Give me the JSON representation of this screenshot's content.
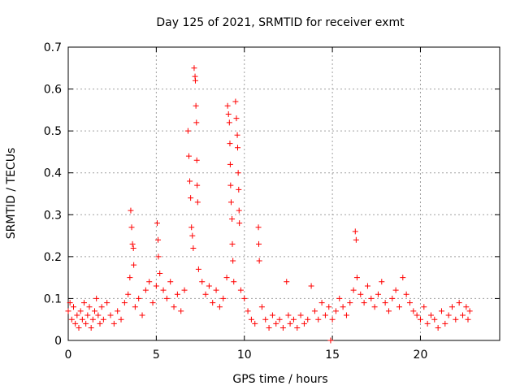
{
  "chart_data": {
    "type": "scatter",
    "title": "Day 125 of 2021, SRMTID for receiver exmt",
    "xlabel": "GPS time / hours",
    "ylabel": "SRMTID / TECUs",
    "xlim": [
      0,
      24.5
    ],
    "ylim": [
      0,
      0.7
    ],
    "xticks": [
      0,
      5,
      10,
      15,
      20
    ],
    "xtick_labels": [
      "0",
      "5",
      "10",
      "15",
      "20"
    ],
    "yticks": [
      0,
      0.1,
      0.2,
      0.3,
      0.4,
      0.5,
      0.6,
      0.7
    ],
    "ytick_labels": [
      "0",
      "0.1",
      "0.2",
      "0.3",
      "0.4",
      "0.5",
      "0.6",
      "0.7"
    ],
    "grid": true,
    "marker": "+",
    "color": "#ff0000",
    "series": [
      {
        "name": "SRMTID",
        "points": [
          [
            0.0,
            0.07
          ],
          [
            0.1,
            0.09
          ],
          [
            0.2,
            0.05
          ],
          [
            0.3,
            0.08
          ],
          [
            0.4,
            0.04
          ],
          [
            0.5,
            0.06
          ],
          [
            0.6,
            0.03
          ],
          [
            0.7,
            0.07
          ],
          [
            0.8,
            0.05
          ],
          [
            0.9,
            0.09
          ],
          [
            1.0,
            0.04
          ],
          [
            1.1,
            0.06
          ],
          [
            1.2,
            0.08
          ],
          [
            1.3,
            0.03
          ],
          [
            1.4,
            0.05
          ],
          [
            1.5,
            0.07
          ],
          [
            1.6,
            0.1
          ],
          [
            1.7,
            0.06
          ],
          [
            1.8,
            0.04
          ],
          [
            1.9,
            0.08
          ],
          [
            2.0,
            0.05
          ],
          [
            2.2,
            0.09
          ],
          [
            2.4,
            0.06
          ],
          [
            2.6,
            0.04
          ],
          [
            2.8,
            0.07
          ],
          [
            3.0,
            0.05
          ],
          [
            3.2,
            0.09
          ],
          [
            3.4,
            0.11
          ],
          [
            3.5,
            0.15
          ],
          [
            3.55,
            0.31
          ],
          [
            3.6,
            0.27
          ],
          [
            3.65,
            0.23
          ],
          [
            3.7,
            0.22
          ],
          [
            3.72,
            0.18
          ],
          [
            3.8,
            0.08
          ],
          [
            4.0,
            0.1
          ],
          [
            4.2,
            0.06
          ],
          [
            4.4,
            0.12
          ],
          [
            4.6,
            0.14
          ],
          [
            4.8,
            0.09
          ],
          [
            5.0,
            0.13
          ],
          [
            5.05,
            0.28
          ],
          [
            5.1,
            0.24
          ],
          [
            5.12,
            0.2
          ],
          [
            5.2,
            0.16
          ],
          [
            5.4,
            0.12
          ],
          [
            5.6,
            0.1
          ],
          [
            5.8,
            0.14
          ],
          [
            6.0,
            0.08
          ],
          [
            6.2,
            0.11
          ],
          [
            6.4,
            0.07
          ],
          [
            6.6,
            0.12
          ],
          [
            6.8,
            0.5
          ],
          [
            6.85,
            0.44
          ],
          [
            6.9,
            0.38
          ],
          [
            6.95,
            0.34
          ],
          [
            7.0,
            0.27
          ],
          [
            7.05,
            0.25
          ],
          [
            7.1,
            0.22
          ],
          [
            7.15,
            0.65
          ],
          [
            7.2,
            0.63
          ],
          [
            7.22,
            0.62
          ],
          [
            7.25,
            0.56
          ],
          [
            7.28,
            0.52
          ],
          [
            7.3,
            0.43
          ],
          [
            7.32,
            0.37
          ],
          [
            7.35,
            0.33
          ],
          [
            7.4,
            0.17
          ],
          [
            7.6,
            0.14
          ],
          [
            7.8,
            0.11
          ],
          [
            8.0,
            0.13
          ],
          [
            8.2,
            0.09
          ],
          [
            8.4,
            0.12
          ],
          [
            8.6,
            0.08
          ],
          [
            8.8,
            0.1
          ],
          [
            9.0,
            0.15
          ],
          [
            9.05,
            0.56
          ],
          [
            9.1,
            0.54
          ],
          [
            9.15,
            0.52
          ],
          [
            9.18,
            0.47
          ],
          [
            9.2,
            0.42
          ],
          [
            9.22,
            0.37
          ],
          [
            9.25,
            0.33
          ],
          [
            9.3,
            0.29
          ],
          [
            9.32,
            0.23
          ],
          [
            9.35,
            0.19
          ],
          [
            9.4,
            0.14
          ],
          [
            9.5,
            0.57
          ],
          [
            9.55,
            0.53
          ],
          [
            9.6,
            0.49
          ],
          [
            9.62,
            0.46
          ],
          [
            9.65,
            0.4
          ],
          [
            9.68,
            0.36
          ],
          [
            9.7,
            0.31
          ],
          [
            9.72,
            0.28
          ],
          [
            9.8,
            0.12
          ],
          [
            10.0,
            0.1
          ],
          [
            10.2,
            0.07
          ],
          [
            10.4,
            0.05
          ],
          [
            10.6,
            0.04
          ],
          [
            10.8,
            0.27
          ],
          [
            10.82,
            0.23
          ],
          [
            10.85,
            0.19
          ],
          [
            11.0,
            0.08
          ],
          [
            11.2,
            0.05
          ],
          [
            11.4,
            0.03
          ],
          [
            11.6,
            0.06
          ],
          [
            11.8,
            0.04
          ],
          [
            12.0,
            0.05
          ],
          [
            12.2,
            0.03
          ],
          [
            12.4,
            0.14
          ],
          [
            12.5,
            0.06
          ],
          [
            12.6,
            0.04
          ],
          [
            12.8,
            0.05
          ],
          [
            13.0,
            0.03
          ],
          [
            13.2,
            0.06
          ],
          [
            13.4,
            0.04
          ],
          [
            13.6,
            0.05
          ],
          [
            13.8,
            0.13
          ],
          [
            14.0,
            0.07
          ],
          [
            14.2,
            0.05
          ],
          [
            14.4,
            0.09
          ],
          [
            14.6,
            0.06
          ],
          [
            14.8,
            0.08
          ],
          [
            14.9,
            0.0
          ],
          [
            15.0,
            0.05
          ],
          [
            15.2,
            0.07
          ],
          [
            15.4,
            0.1
          ],
          [
            15.6,
            0.08
          ],
          [
            15.8,
            0.06
          ],
          [
            16.0,
            0.09
          ],
          [
            16.2,
            0.12
          ],
          [
            16.3,
            0.26
          ],
          [
            16.35,
            0.24
          ],
          [
            16.4,
            0.15
          ],
          [
            16.6,
            0.11
          ],
          [
            16.8,
            0.09
          ],
          [
            17.0,
            0.13
          ],
          [
            17.2,
            0.1
          ],
          [
            17.4,
            0.08
          ],
          [
            17.6,
            0.11
          ],
          [
            17.8,
            0.14
          ],
          [
            18.0,
            0.09
          ],
          [
            18.2,
            0.07
          ],
          [
            18.4,
            0.1
          ],
          [
            18.6,
            0.12
          ],
          [
            18.8,
            0.08
          ],
          [
            19.0,
            0.15
          ],
          [
            19.2,
            0.11
          ],
          [
            19.4,
            0.09
          ],
          [
            19.6,
            0.07
          ],
          [
            19.8,
            0.06
          ],
          [
            20.0,
            0.05
          ],
          [
            20.2,
            0.08
          ],
          [
            20.4,
            0.04
          ],
          [
            20.6,
            0.06
          ],
          [
            20.8,
            0.05
          ],
          [
            21.0,
            0.03
          ],
          [
            21.2,
            0.07
          ],
          [
            21.4,
            0.04
          ],
          [
            21.6,
            0.06
          ],
          [
            21.8,
            0.08
          ],
          [
            22.0,
            0.05
          ],
          [
            22.2,
            0.09
          ],
          [
            22.4,
            0.06
          ],
          [
            22.6,
            0.08
          ],
          [
            22.7,
            0.05
          ],
          [
            22.8,
            0.07
          ]
        ]
      }
    ]
  }
}
